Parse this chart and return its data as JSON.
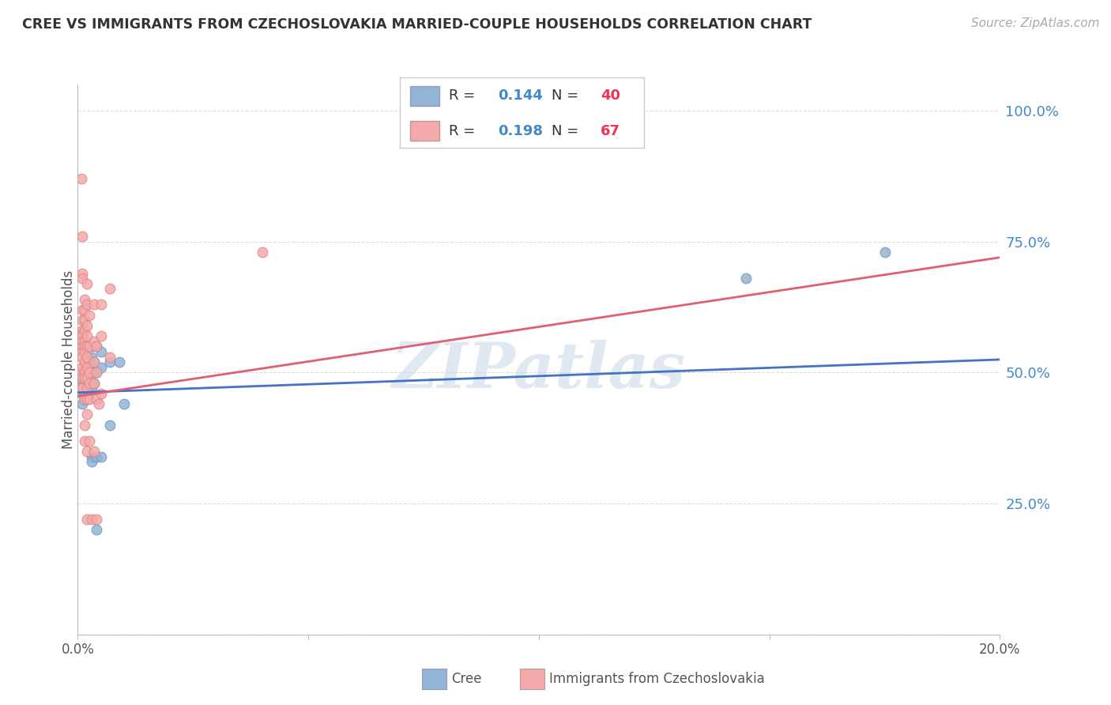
{
  "title": "CREE VS IMMIGRANTS FROM CZECHOSLOVAKIA MARRIED-COUPLE HOUSEHOLDS CORRELATION CHART",
  "source": "Source: ZipAtlas.com",
  "ylabel": "Married-couple Households",
  "watermark": "ZIPatlas",
  "blue_color": "#92B4D7",
  "pink_color": "#F4AAAA",
  "blue_line_color": "#4472C4",
  "pink_line_color": "#E06070",
  "blue_scatter": [
    [
      0.0008,
      0.47
    ],
    [
      0.0008,
      0.5
    ],
    [
      0.0009,
      0.484
    ],
    [
      0.001,
      0.46
    ],
    [
      0.001,
      0.44
    ],
    [
      0.0015,
      0.52
    ],
    [
      0.0015,
      0.5
    ],
    [
      0.0015,
      0.48
    ],
    [
      0.0015,
      0.46
    ],
    [
      0.0015,
      0.45
    ],
    [
      0.0018,
      0.48
    ],
    [
      0.002,
      0.53
    ],
    [
      0.002,
      0.55
    ],
    [
      0.002,
      0.51
    ],
    [
      0.002,
      0.49
    ],
    [
      0.002,
      0.47
    ],
    [
      0.0022,
      0.46
    ],
    [
      0.003,
      0.53
    ],
    [
      0.003,
      0.51
    ],
    [
      0.003,
      0.5
    ],
    [
      0.003,
      0.47
    ],
    [
      0.003,
      0.34
    ],
    [
      0.003,
      0.33
    ],
    [
      0.0032,
      0.55
    ],
    [
      0.0035,
      0.52
    ],
    [
      0.0035,
      0.5
    ],
    [
      0.0035,
      0.48
    ],
    [
      0.004,
      0.55
    ],
    [
      0.004,
      0.5
    ],
    [
      0.004,
      0.34
    ],
    [
      0.004,
      0.2
    ],
    [
      0.005,
      0.54
    ],
    [
      0.005,
      0.51
    ],
    [
      0.005,
      0.34
    ],
    [
      0.007,
      0.52
    ],
    [
      0.007,
      0.4
    ],
    [
      0.009,
      0.52
    ],
    [
      0.01,
      0.44
    ],
    [
      0.145,
      0.68
    ],
    [
      0.175,
      0.73
    ]
  ],
  "pink_scatter": [
    [
      0.0005,
      0.47
    ],
    [
      0.0007,
      0.5
    ],
    [
      0.0008,
      0.87
    ],
    [
      0.001,
      0.76
    ],
    [
      0.001,
      0.69
    ],
    [
      0.001,
      0.68
    ],
    [
      0.001,
      0.62
    ],
    [
      0.001,
      0.6
    ],
    [
      0.001,
      0.58
    ],
    [
      0.001,
      0.575
    ],
    [
      0.001,
      0.57
    ],
    [
      0.001,
      0.56
    ],
    [
      0.001,
      0.55
    ],
    [
      0.001,
      0.54
    ],
    [
      0.001,
      0.53
    ],
    [
      0.001,
      0.51
    ],
    [
      0.001,
      0.49
    ],
    [
      0.001,
      0.47
    ],
    [
      0.0015,
      0.64
    ],
    [
      0.0015,
      0.62
    ],
    [
      0.0015,
      0.6
    ],
    [
      0.0015,
      0.58
    ],
    [
      0.0015,
      0.56
    ],
    [
      0.0015,
      0.55
    ],
    [
      0.0015,
      0.54
    ],
    [
      0.0015,
      0.52
    ],
    [
      0.0015,
      0.5
    ],
    [
      0.0015,
      0.49
    ],
    [
      0.0015,
      0.45
    ],
    [
      0.0015,
      0.4
    ],
    [
      0.0015,
      0.37
    ],
    [
      0.002,
      0.67
    ],
    [
      0.002,
      0.63
    ],
    [
      0.002,
      0.59
    ],
    [
      0.002,
      0.57
    ],
    [
      0.002,
      0.55
    ],
    [
      0.002,
      0.53
    ],
    [
      0.002,
      0.51
    ],
    [
      0.002,
      0.49
    ],
    [
      0.002,
      0.47
    ],
    [
      0.002,
      0.45
    ],
    [
      0.002,
      0.42
    ],
    [
      0.002,
      0.35
    ],
    [
      0.002,
      0.22
    ],
    [
      0.0025,
      0.61
    ],
    [
      0.0025,
      0.55
    ],
    [
      0.0025,
      0.5
    ],
    [
      0.0025,
      0.48
    ],
    [
      0.0025,
      0.45
    ],
    [
      0.0025,
      0.37
    ],
    [
      0.003,
      0.22
    ],
    [
      0.0035,
      0.63
    ],
    [
      0.0035,
      0.56
    ],
    [
      0.0035,
      0.52
    ],
    [
      0.0035,
      0.48
    ],
    [
      0.0035,
      0.35
    ],
    [
      0.004,
      0.22
    ],
    [
      0.004,
      0.55
    ],
    [
      0.004,
      0.5
    ],
    [
      0.004,
      0.45
    ],
    [
      0.0045,
      0.44
    ],
    [
      0.005,
      0.63
    ],
    [
      0.005,
      0.57
    ],
    [
      0.005,
      0.46
    ],
    [
      0.007,
      0.66
    ],
    [
      0.007,
      0.53
    ],
    [
      0.04,
      0.73
    ]
  ],
  "blue_line": [
    [
      0.0,
      0.462
    ],
    [
      0.2,
      0.525
    ]
  ],
  "pink_line": [
    [
      0.0,
      0.455
    ],
    [
      0.2,
      0.72
    ]
  ],
  "xmin": 0.0,
  "xmax": 0.2,
  "ymin": 0.0,
  "ymax": 1.05,
  "ytick_positions": [
    0.0,
    0.25,
    0.5,
    0.75,
    1.0
  ],
  "ytick_labels": [
    "",
    "25.0%",
    "50.0%",
    "75.0%",
    "100.0%"
  ],
  "xtick_positions": [
    0.0,
    0.05,
    0.1,
    0.15,
    0.2
  ],
  "xtick_labels": [
    "0.0%",
    "",
    "",
    "",
    "20.0%"
  ],
  "legend_r1": "R = ",
  "legend_v1": "0.144",
  "legend_n1": "N = ",
  "legend_nv1": "40",
  "legend_r2": "R = ",
  "legend_v2": "0.198",
  "legend_n2": "N = ",
  "legend_nv2": "67",
  "label_cree": "Cree",
  "label_immig": "Immigrants from Czechoslovakia",
  "text_color": "#555555",
  "blue_val_color": "#4488CC",
  "pink_val_color": "#EE3355",
  "ytick_color": "#4488CC",
  "grid_color": "#DDDDDD",
  "source_color": "#AAAAAA"
}
